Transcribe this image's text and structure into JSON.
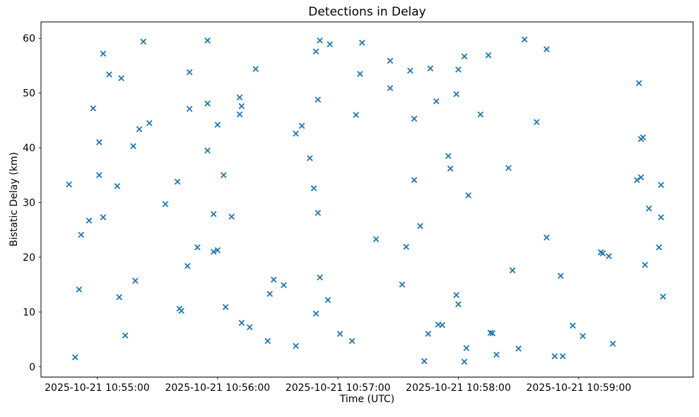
{
  "window": {
    "background": "#ffffff"
  },
  "chart_data": {
    "type": "scatter",
    "title": "Detections in Delay",
    "xlabel": "Time (UTC)",
    "ylabel": "Bistatic Delay (km)",
    "date": "2025-10-21",
    "x_tick_labels": [
      "2025-10-21 10:55:00",
      "2025-10-21 10:56:00",
      "2025-10-21 10:57:00",
      "2025-10-21 10:58:00",
      "2025-10-21 10:59:00"
    ],
    "y_ticks": [
      0,
      10,
      20,
      30,
      40,
      50,
      60
    ],
    "xlim_time": [
      "10:54:32",
      "10:59:57"
    ],
    "ylim": [
      -1.9,
      63.0
    ],
    "grid": false,
    "legend": null,
    "marker": "x",
    "marker_color": "#1f77b4",
    "axis_color": "#000000",
    "series": [
      {
        "name": "detections",
        "points": [
          [
            "10:54:46",
            33.3
          ],
          [
            "10:54:49",
            1.7
          ],
          [
            "10:54:51",
            14.1
          ],
          [
            "10:54:52",
            24.1
          ],
          [
            "10:54:56",
            26.7
          ],
          [
            "10:54:58",
            47.2
          ],
          [
            "10:55:01",
            41.0
          ],
          [
            "10:55:01",
            35.0
          ],
          [
            "10:55:03",
            57.2
          ],
          [
            "10:55:03",
            27.3
          ],
          [
            "10:55:06",
            53.4
          ],
          [
            "10:55:10",
            33.0
          ],
          [
            "10:55:11",
            12.7
          ],
          [
            "10:55:12",
            52.7
          ],
          [
            "10:55:14",
            5.7
          ],
          [
            "10:55:18",
            40.3
          ],
          [
            "10:55:19",
            15.7
          ],
          [
            "10:55:21",
            43.4
          ],
          [
            "10:55:23",
            59.4
          ],
          [
            "10:55:26",
            44.5
          ],
          [
            "10:55:34",
            29.7
          ],
          [
            "10:55:40",
            33.8
          ],
          [
            "10:55:41",
            10.6
          ],
          [
            "10:55:42",
            10.2
          ],
          [
            "10:55:45",
            18.4
          ],
          [
            "10:55:46",
            47.1
          ],
          [
            "10:55:46",
            53.8
          ],
          [
            "10:55:50",
            21.8
          ],
          [
            "10:55:55",
            59.6
          ],
          [
            "10:55:55",
            48.1
          ],
          [
            "10:55:55",
            39.5
          ],
          [
            "10:55:58",
            21.0
          ],
          [
            "10:55:58",
            27.9
          ],
          [
            "10:56:00",
            21.3
          ],
          [
            "10:56:00",
            44.2
          ],
          [
            "10:56:03",
            35.0
          ],
          [
            "10:56:04",
            10.9
          ],
          [
            "10:56:07",
            27.4
          ],
          [
            "10:56:11",
            49.2
          ],
          [
            "10:56:11",
            46.1
          ],
          [
            "10:56:12",
            47.6
          ],
          [
            "10:56:12",
            8.0
          ],
          [
            "10:56:16",
            7.2
          ],
          [
            "10:56:19",
            54.4
          ],
          [
            "10:56:25",
            4.7
          ],
          [
            "10:56:26",
            13.3
          ],
          [
            "10:56:28",
            15.9
          ],
          [
            "10:56:33",
            14.9
          ],
          [
            "10:56:39",
            42.6
          ],
          [
            "10:56:39",
            3.8
          ],
          [
            "10:56:42",
            44.0
          ],
          [
            "10:56:46",
            38.1
          ],
          [
            "10:56:48",
            32.6
          ],
          [
            "10:56:49",
            57.6
          ],
          [
            "10:56:49",
            9.7
          ],
          [
            "10:56:50",
            48.8
          ],
          [
            "10:56:50",
            28.1
          ],
          [
            "10:56:51",
            59.6
          ],
          [
            "10:56:51",
            16.3
          ],
          [
            "10:56:55",
            12.2
          ],
          [
            "10:56:56",
            58.9
          ],
          [
            "10:57:01",
            6.0
          ],
          [
            "10:57:07",
            4.7
          ],
          [
            "10:57:09",
            46.0
          ],
          [
            "10:57:11",
            53.5
          ],
          [
            "10:57:12",
            59.2
          ],
          [
            "10:57:19",
            23.3
          ],
          [
            "10:57:26",
            55.9
          ],
          [
            "10:57:26",
            50.9
          ],
          [
            "10:57:32",
            15.0
          ],
          [
            "10:57:34",
            21.9
          ],
          [
            "10:57:36",
            54.1
          ],
          [
            "10:57:38",
            45.3
          ],
          [
            "10:57:38",
            34.1
          ],
          [
            "10:57:41",
            25.7
          ],
          [
            "10:57:43",
            1.0
          ],
          [
            "10:57:45",
            6.0
          ],
          [
            "10:57:46",
            54.5
          ],
          [
            "10:57:49",
            48.5
          ],
          [
            "10:57:50",
            7.7
          ],
          [
            "10:57:52",
            7.6
          ],
          [
            "10:57:55",
            38.5
          ],
          [
            "10:57:56",
            36.2
          ],
          [
            "10:57:59",
            49.8
          ],
          [
            "10:57:59",
            13.1
          ],
          [
            "10:58:00",
            54.3
          ],
          [
            "10:58:00",
            11.4
          ],
          [
            "10:58:03",
            56.7
          ],
          [
            "10:58:03",
            0.9
          ],
          [
            "10:58:04",
            3.4
          ],
          [
            "10:58:05",
            31.3
          ],
          [
            "10:58:11",
            46.1
          ],
          [
            "10:58:15",
            56.9
          ],
          [
            "10:58:16",
            6.2
          ],
          [
            "10:58:17",
            6.1
          ],
          [
            "10:58:19",
            2.2
          ],
          [
            "10:58:25",
            36.3
          ],
          [
            "10:58:27",
            17.6
          ],
          [
            "10:58:30",
            3.3
          ],
          [
            "10:58:33",
            59.8
          ],
          [
            "10:58:39",
            44.7
          ],
          [
            "10:58:44",
            58.0
          ],
          [
            "10:58:44",
            23.6
          ],
          [
            "10:58:48",
            1.9
          ],
          [
            "10:58:51",
            16.6
          ],
          [
            "10:58:52",
            1.9
          ],
          [
            "10:58:57",
            7.5
          ],
          [
            "10:59:02",
            5.6
          ],
          [
            "10:59:11",
            20.9
          ],
          [
            "10:59:12",
            20.7
          ],
          [
            "10:59:15",
            20.2
          ],
          [
            "10:59:17",
            4.2
          ],
          [
            "10:59:29",
            34.1
          ],
          [
            "10:59:30",
            51.8
          ],
          [
            "10:59:31",
            41.6
          ],
          [
            "10:59:31",
            34.6
          ],
          [
            "10:59:32",
            41.9
          ],
          [
            "10:59:33",
            18.6
          ],
          [
            "10:59:35",
            28.9
          ],
          [
            "10:59:40",
            21.8
          ],
          [
            "10:59:41",
            33.2
          ],
          [
            "10:59:41",
            27.3
          ],
          [
            "10:59:42",
            12.8
          ]
        ]
      }
    ]
  }
}
